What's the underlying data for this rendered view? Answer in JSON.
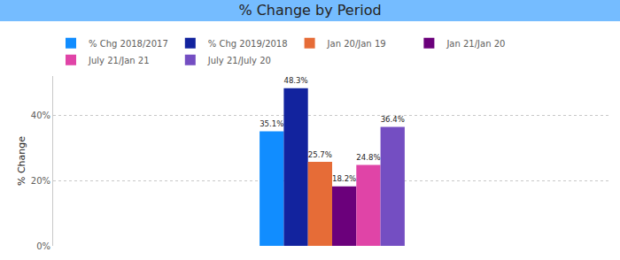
{
  "chart_data": {
    "type": "bar",
    "title": "% Change by Period",
    "y_label": "% Change",
    "categories": [
      null
    ],
    "series": [
      {
        "name": "% Chg 2018/2017",
        "color": "#118DFF",
        "values": [
          35.1
        ],
        "value_labels": [
          "35.1%"
        ]
      },
      {
        "name": "% Chg 2019/2018",
        "color": "#12239E",
        "values": [
          48.3
        ],
        "value_labels": [
          "48.3%"
        ]
      },
      {
        "name": "Jan 20/Jan 19",
        "color": "#E66C37",
        "values": [
          25.7
        ],
        "value_labels": [
          "25.7%"
        ]
      },
      {
        "name": "Jan 21/Jan 20",
        "color": "#6B007B",
        "values": [
          18.2
        ],
        "value_labels": [
          "18.2%"
        ]
      },
      {
        "name": "July 21/Jan 21",
        "color": "#E044A7",
        "values": [
          24.8
        ],
        "value_labels": [
          "24.8%"
        ]
      },
      {
        "name": "July 21/July 20",
        "color": "#744EC2",
        "values": [
          36.4
        ],
        "value_labels": [
          "36.4%"
        ]
      }
    ],
    "ylim": [
      0,
      52
    ],
    "yticks": [
      {
        "value": 0,
        "label": "0%"
      },
      {
        "value": 20,
        "label": "20%"
      },
      {
        "value": 40,
        "label": "40%"
      }
    ],
    "grid": true,
    "data_labels": true,
    "legend": "top left"
  }
}
